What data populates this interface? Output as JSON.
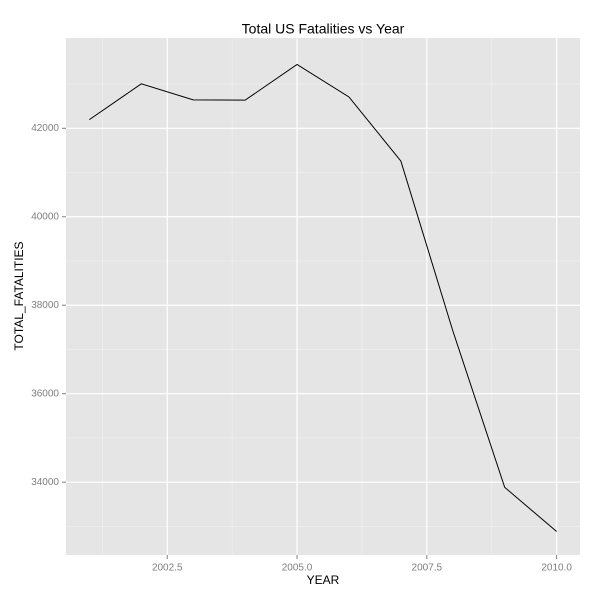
{
  "chart_data": {
    "type": "line",
    "title": "Total US Fatalities vs Year",
    "x_label": "YEAR",
    "y_label": "TOTAL_FATALITIES",
    "x": [
      2001,
      2002,
      2003,
      2004,
      2005,
      2006,
      2007,
      2008,
      2009,
      2010
    ],
    "series": [
      {
        "name": "TOTAL_FATALITIES",
        "color": "#000000",
        "values": [
          42196,
          43005,
          42643,
          42636,
          43442,
          42708,
          41259,
          37423,
          33883,
          32885
        ]
      }
    ],
    "xlim": [
      2000.55,
      2010.45
    ],
    "xticks": [
      {
        "value": 2002.5,
        "label": "2002.5"
      },
      {
        "value": 2005,
        "label": "2005.0"
      },
      {
        "value": 2007.5,
        "label": "2007.5"
      },
      {
        "value": 2010,
        "label": "2010.0"
      }
    ],
    "xminor": [
      2001.25,
      2003.75,
      2006.25,
      2008.75
    ],
    "ylim": [
      32354,
      44041
    ],
    "yticks": [
      34000,
      36000,
      38000,
      40000,
      42000
    ],
    "yminor": [
      33000,
      35000,
      37000,
      39000,
      41000,
      43000
    ],
    "grid": true
  }
}
